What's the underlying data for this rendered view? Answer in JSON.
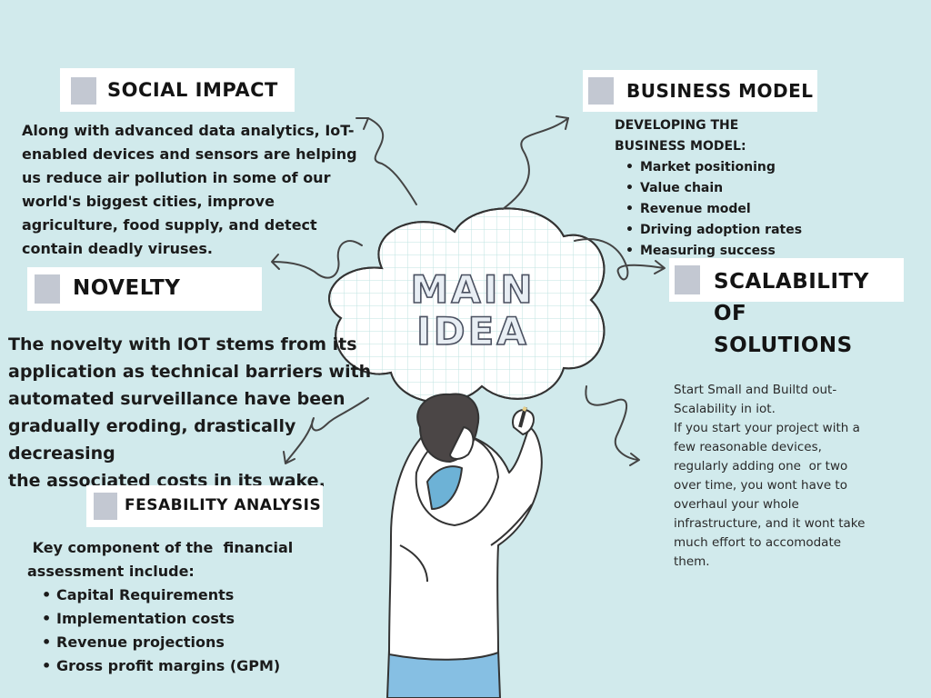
{
  "central": {
    "line1": "MAIN",
    "line2": "IDEA"
  },
  "social_impact": {
    "title": "SOCIAL IMPACT",
    "lines": [
      "Along with advanced data analytics, IoT-",
      "enabled devices and sensors are helping",
      "us reduce air pollution in some of our",
      "world's biggest cities, improve",
      "agriculture, food supply, and detect",
      "contain deadly viruses."
    ]
  },
  "novelty": {
    "title": "NOVELTY",
    "lines": [
      "The novelty with IOT stems from its",
      "application as technical barriers with",
      "automated surveillance have been",
      "gradually eroding, drastically decreasing",
      "the associated costs in its wake."
    ]
  },
  "feasibility": {
    "title": "FESABILITY ANALYSIS",
    "intro_lines": [
      " Key component of the  financial",
      "assessment include:"
    ],
    "items": [
      "Capital Requirements",
      "Implementation costs",
      "Revenue projections",
      "Gross profit margins (GPM)"
    ]
  },
  "business_model": {
    "title": "BUSINESS MODEL",
    "intro_lines": [
      "DEVELOPING THE",
      "BUSINESS MODEL:"
    ],
    "items": [
      "Market positioning",
      "Value chain",
      "Revenue model",
      "Driving adoption rates",
      "Measuring success"
    ]
  },
  "scalability": {
    "title_lines": [
      "SCALABILITY",
      "OF",
      "SOLUTIONS"
    ],
    "lines": [
      "Start Small and Builtd out-",
      "Scalability in iot.",
      "If you start your project with a",
      "few reasonable devices,",
      "regularly adding one  or two",
      "over time, you wont have to",
      "overhaul your whole",
      "infrastructure, and it wont take",
      "much effort to accomodate",
      "them."
    ]
  },
  "colors": {
    "background": "#d1eaec",
    "card": "#ffffff",
    "title_square": "#c3c8d2",
    "arrow": "#444444",
    "cloud_grid": "#bfe3e2"
  }
}
